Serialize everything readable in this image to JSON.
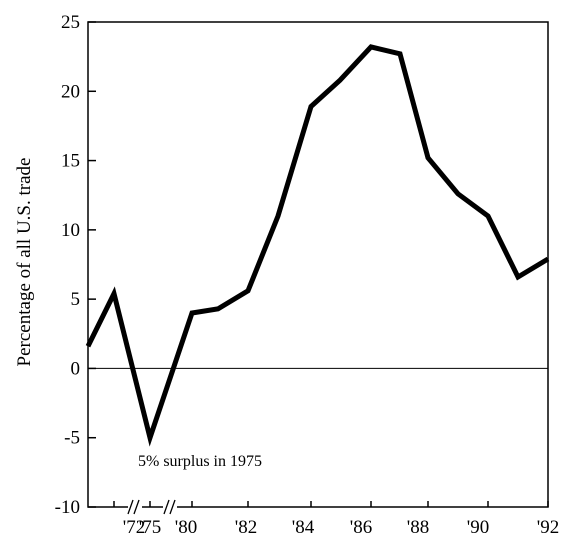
{
  "chart_data": {
    "type": "line",
    "y_label": "Percentage of all U.S. trade",
    "annotation": "5% surplus in 1975",
    "categories": [
      null,
      "'72",
      "'75",
      "'80",
      null,
      "'82",
      null,
      "'84",
      null,
      "'86",
      null,
      "'88",
      null,
      "'90",
      null,
      "'92"
    ],
    "values": [
      1.6,
      5.4,
      -5,
      4.0,
      4.3,
      5.6,
      11,
      18.9,
      20.8,
      23.2,
      22.7,
      15.2,
      12.6,
      11,
      6.6,
      7.9
    ],
    "color": "#000000",
    "ylim": [
      -10,
      25
    ],
    "yticks": [
      -10,
      -5,
      0,
      5,
      10,
      15,
      20,
      25
    ],
    "zero_line": true
  }
}
